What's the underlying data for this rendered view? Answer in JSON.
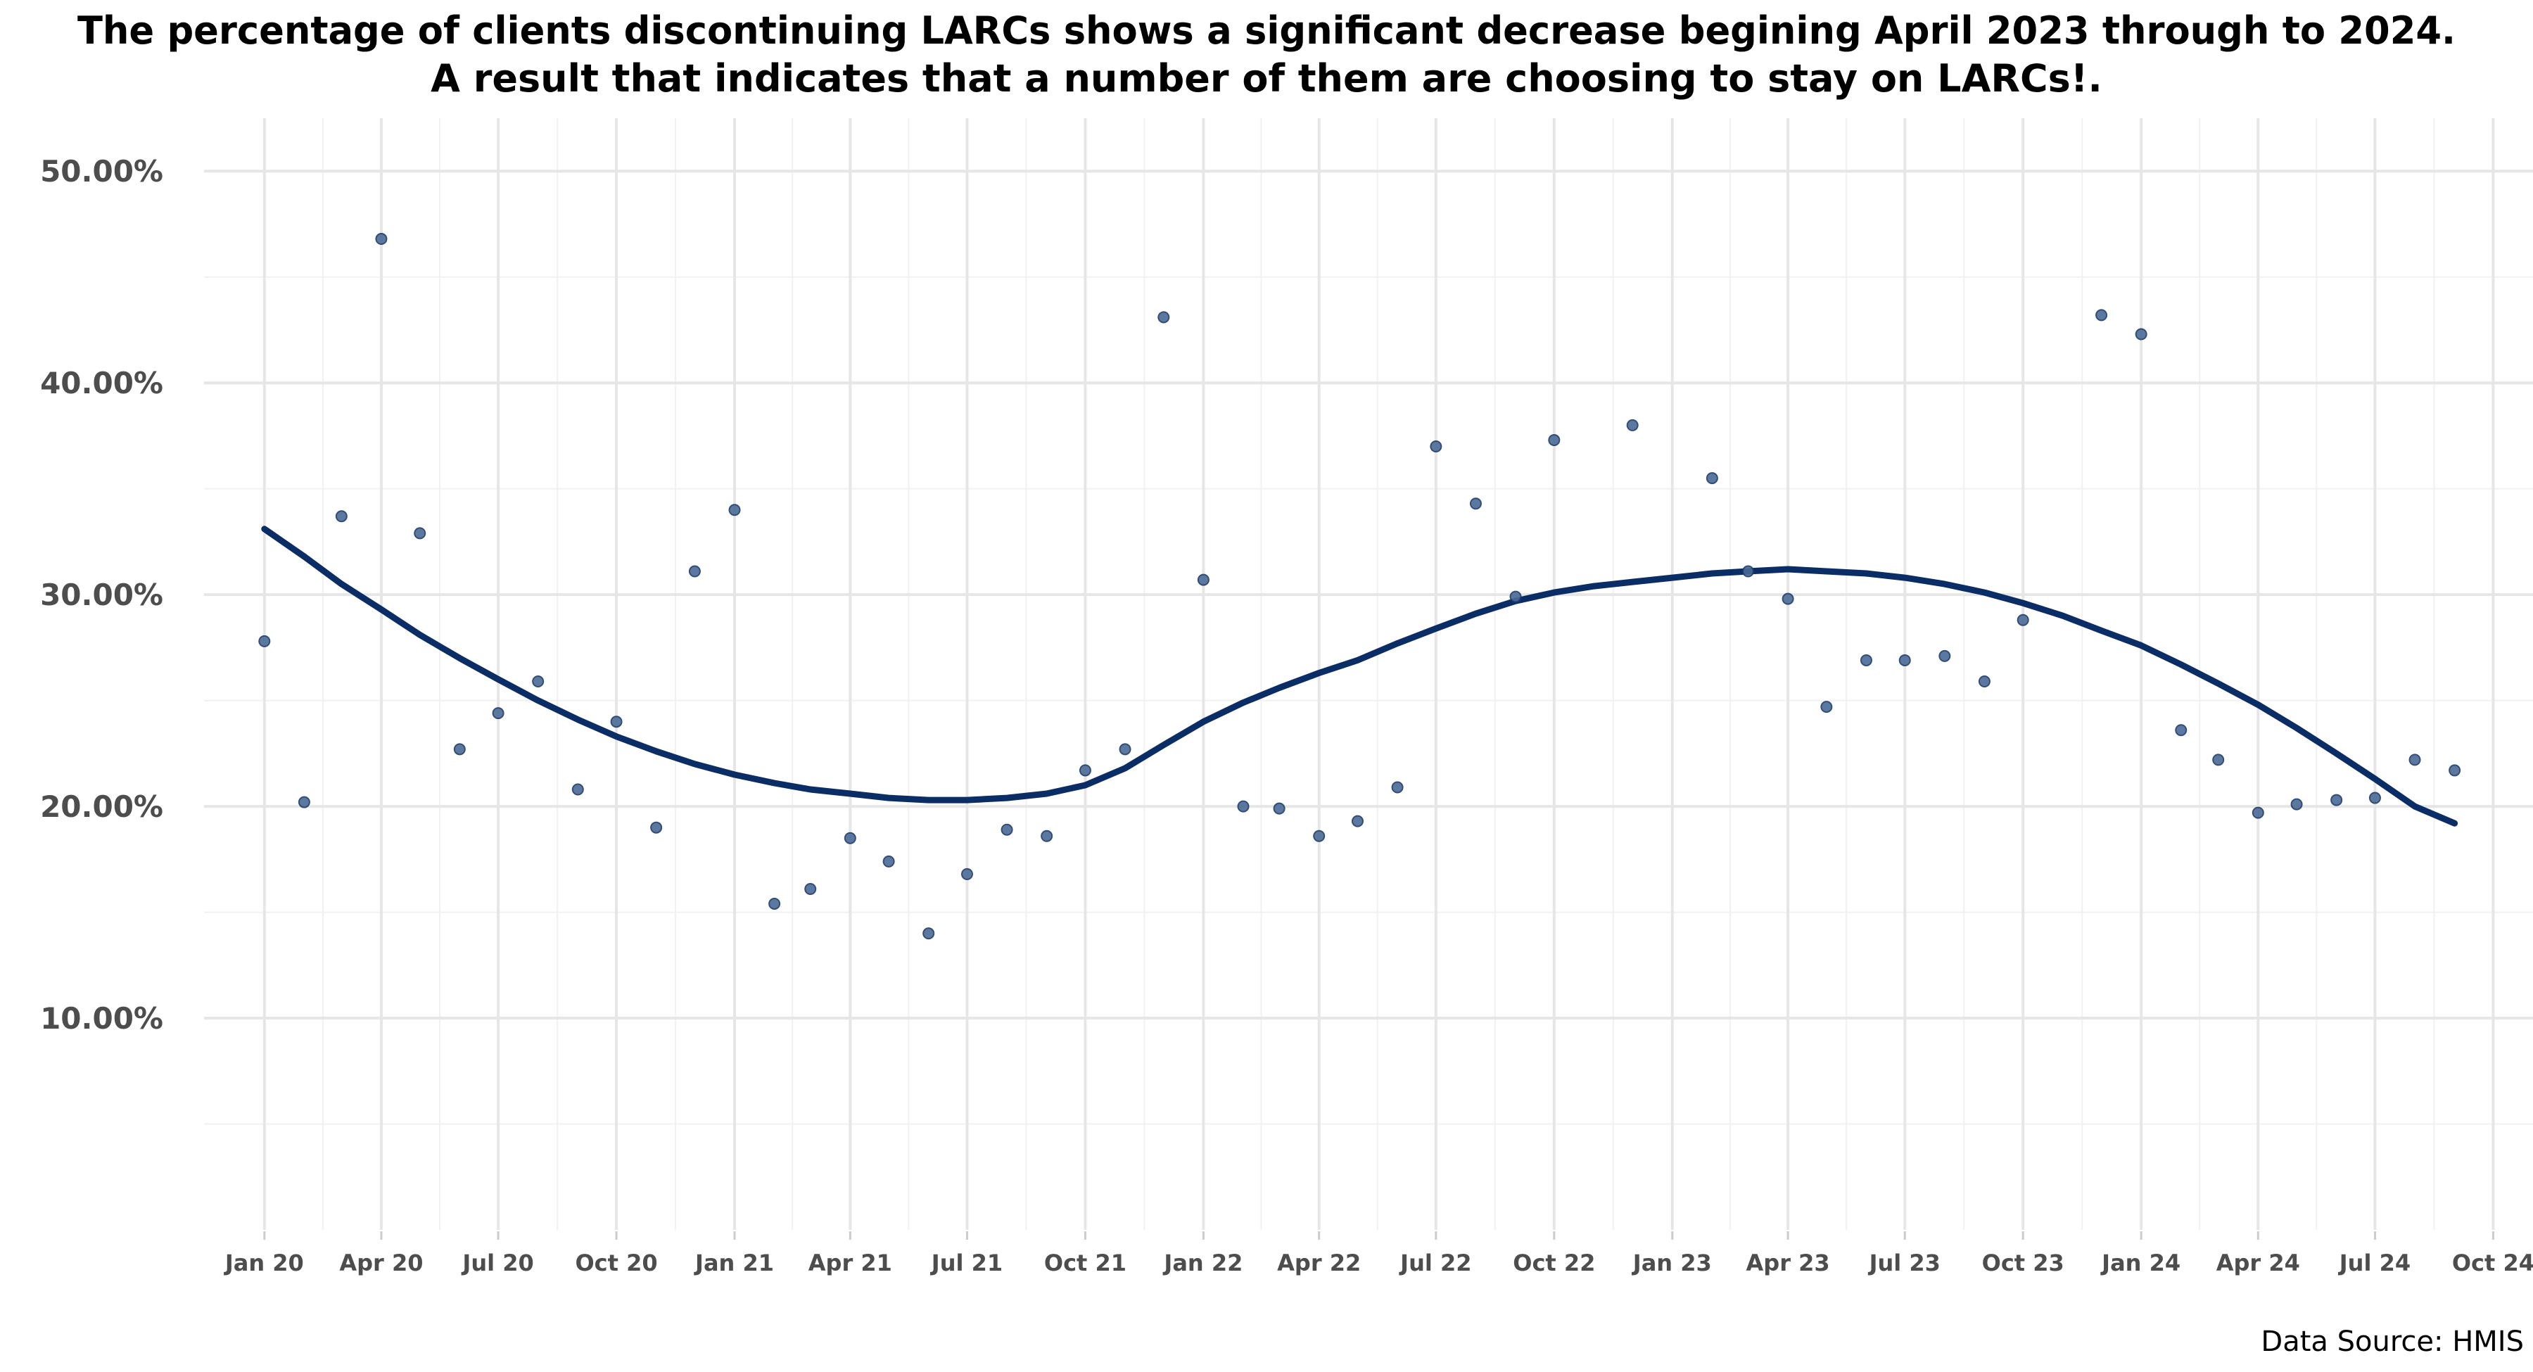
{
  "chart_data": {
    "type": "scatter",
    "title_lines": [
      "The percentage of clients discontinuing LARCs shows a significant decrease begining April 2023 through to 2024.",
      "A result that indicates that a number of them are choosing to stay on LARCs!."
    ],
    "caption": "Data Source: HMIS",
    "xlabel": "",
    "ylabel": "",
    "x_range": [
      "2019-11-15",
      "2024-11-01"
    ],
    "y_range": [
      0,
      0.525
    ],
    "x_ticks": [
      {
        "date": "2020-01-01",
        "label": "Jan 20"
      },
      {
        "date": "2020-04-01",
        "label": "Apr 20"
      },
      {
        "date": "2020-07-01",
        "label": "Jul 20"
      },
      {
        "date": "2020-10-01",
        "label": "Oct 20"
      },
      {
        "date": "2021-01-01",
        "label": "Jan 21"
      },
      {
        "date": "2021-04-01",
        "label": "Apr 21"
      },
      {
        "date": "2021-07-01",
        "label": "Jul 21"
      },
      {
        "date": "2021-10-01",
        "label": "Oct 21"
      },
      {
        "date": "2022-01-01",
        "label": "Jan 22"
      },
      {
        "date": "2022-04-01",
        "label": "Apr 22"
      },
      {
        "date": "2022-07-01",
        "label": "Jul 22"
      },
      {
        "date": "2022-10-01",
        "label": "Oct 22"
      },
      {
        "date": "2023-01-01",
        "label": "Jan 23"
      },
      {
        "date": "2023-04-01",
        "label": "Apr 23"
      },
      {
        "date": "2023-07-01",
        "label": "Jul 23"
      },
      {
        "date": "2023-10-01",
        "label": "Oct 23"
      },
      {
        "date": "2024-01-01",
        "label": "Jan 24"
      },
      {
        "date": "2024-04-01",
        "label": "Apr 24"
      },
      {
        "date": "2024-07-01",
        "label": "Jul 24"
      },
      {
        "date": "2024-10-01",
        "label": "Oct 24"
      }
    ],
    "y_ticks": [
      {
        "value": 0.1,
        "label": "10.00%"
      },
      {
        "value": 0.2,
        "label": "20.00%"
      },
      {
        "value": 0.3,
        "label": "30.00%"
      },
      {
        "value": 0.4,
        "label": "40.00%"
      },
      {
        "value": 0.5,
        "label": "50.00%"
      }
    ],
    "grid": true,
    "legend": "none",
    "colors": {
      "points": "#4a6a96",
      "points_edge": "#1f3a66",
      "trend": "#0b2d66"
    },
    "points": [
      {
        "x": "2020-01-01",
        "y": 0.278
      },
      {
        "x": "2020-02-01",
        "y": 0.202
      },
      {
        "x": "2020-03-01",
        "y": 0.337
      },
      {
        "x": "2020-04-01",
        "y": 0.468
      },
      {
        "x": "2020-05-01",
        "y": 0.329
      },
      {
        "x": "2020-06-01",
        "y": 0.227
      },
      {
        "x": "2020-07-01",
        "y": 0.244
      },
      {
        "x": "2020-08-01",
        "y": 0.259
      },
      {
        "x": "2020-09-01",
        "y": 0.208
      },
      {
        "x": "2020-10-01",
        "y": 0.24
      },
      {
        "x": "2020-11-01",
        "y": 0.19
      },
      {
        "x": "2020-12-01",
        "y": 0.311
      },
      {
        "x": "2021-01-01",
        "y": 0.34
      },
      {
        "x": "2021-02-01",
        "y": 0.154
      },
      {
        "x": "2021-03-01",
        "y": 0.161
      },
      {
        "x": "2021-04-01",
        "y": 0.185
      },
      {
        "x": "2021-05-01",
        "y": 0.174
      },
      {
        "x": "2021-06-01",
        "y": 0.14
      },
      {
        "x": "2021-07-01",
        "y": 0.168
      },
      {
        "x": "2021-08-01",
        "y": 0.189
      },
      {
        "x": "2021-09-01",
        "y": 0.186
      },
      {
        "x": "2021-10-01",
        "y": 0.217
      },
      {
        "x": "2021-11-01",
        "y": 0.227
      },
      {
        "x": "2021-12-01",
        "y": 0.431
      },
      {
        "x": "2022-01-01",
        "y": 0.307
      },
      {
        "x": "2022-02-01",
        "y": 0.2
      },
      {
        "x": "2022-03-01",
        "y": 0.199
      },
      {
        "x": "2022-04-01",
        "y": 0.186
      },
      {
        "x": "2022-05-01",
        "y": 0.193
      },
      {
        "x": "2022-06-01",
        "y": 0.209
      },
      {
        "x": "2022-07-01",
        "y": 0.37
      },
      {
        "x": "2022-08-01",
        "y": 0.343
      },
      {
        "x": "2022-09-01",
        "y": 0.299
      },
      {
        "x": "2022-10-01",
        "y": 0.373
      },
      {
        "x": "2022-12-01",
        "y": 0.38
      },
      {
        "x": "2023-02-01",
        "y": 0.355
      },
      {
        "x": "2023-03-01",
        "y": 0.311
      },
      {
        "x": "2023-04-01",
        "y": 0.298
      },
      {
        "x": "2023-05-01",
        "y": 0.247
      },
      {
        "x": "2023-06-01",
        "y": 0.269
      },
      {
        "x": "2023-07-01",
        "y": 0.269
      },
      {
        "x": "2023-08-01",
        "y": 0.271
      },
      {
        "x": "2023-09-01",
        "y": 0.259
      },
      {
        "x": "2023-10-01",
        "y": 0.288
      },
      {
        "x": "2023-12-01",
        "y": 0.432
      },
      {
        "x": "2024-01-01",
        "y": 0.423
      },
      {
        "x": "2024-02-01",
        "y": 0.236
      },
      {
        "x": "2024-03-01",
        "y": 0.222
      },
      {
        "x": "2024-04-01",
        "y": 0.197
      },
      {
        "x": "2024-05-01",
        "y": 0.201
      },
      {
        "x": "2024-06-01",
        "y": 0.203
      },
      {
        "x": "2024-07-01",
        "y": 0.204
      },
      {
        "x": "2024-08-01",
        "y": 0.222
      },
      {
        "x": "2024-09-01",
        "y": 0.217
      }
    ],
    "trend_line": [
      {
        "x": "2020-01-01",
        "y": 0.331
      },
      {
        "x": "2020-02-01",
        "y": 0.318
      },
      {
        "x": "2020-03-01",
        "y": 0.305
      },
      {
        "x": "2020-04-01",
        "y": 0.293
      },
      {
        "x": "2020-05-01",
        "y": 0.281
      },
      {
        "x": "2020-06-01",
        "y": 0.27
      },
      {
        "x": "2020-07-01",
        "y": 0.26
      },
      {
        "x": "2020-08-01",
        "y": 0.25
      },
      {
        "x": "2020-09-01",
        "y": 0.241
      },
      {
        "x": "2020-10-01",
        "y": 0.233
      },
      {
        "x": "2020-11-01",
        "y": 0.226
      },
      {
        "x": "2020-12-01",
        "y": 0.22
      },
      {
        "x": "2021-01-01",
        "y": 0.215
      },
      {
        "x": "2021-02-01",
        "y": 0.211
      },
      {
        "x": "2021-03-01",
        "y": 0.208
      },
      {
        "x": "2021-04-01",
        "y": 0.206
      },
      {
        "x": "2021-05-01",
        "y": 0.204
      },
      {
        "x": "2021-06-01",
        "y": 0.203
      },
      {
        "x": "2021-07-01",
        "y": 0.203
      },
      {
        "x": "2021-08-01",
        "y": 0.204
      },
      {
        "x": "2021-09-01",
        "y": 0.206
      },
      {
        "x": "2021-10-01",
        "y": 0.21
      },
      {
        "x": "2021-11-01",
        "y": 0.218
      },
      {
        "x": "2021-12-01",
        "y": 0.229
      },
      {
        "x": "2022-01-01",
        "y": 0.24
      },
      {
        "x": "2022-02-01",
        "y": 0.249
      },
      {
        "x": "2022-03-01",
        "y": 0.256
      },
      {
        "x": "2022-04-01",
        "y": 0.263
      },
      {
        "x": "2022-05-01",
        "y": 0.269
      },
      {
        "x": "2022-06-01",
        "y": 0.277
      },
      {
        "x": "2022-07-01",
        "y": 0.284
      },
      {
        "x": "2022-08-01",
        "y": 0.291
      },
      {
        "x": "2022-09-01",
        "y": 0.297
      },
      {
        "x": "2022-10-01",
        "y": 0.301
      },
      {
        "x": "2022-11-01",
        "y": 0.304
      },
      {
        "x": "2022-12-01",
        "y": 0.306
      },
      {
        "x": "2023-01-01",
        "y": 0.308
      },
      {
        "x": "2023-02-01",
        "y": 0.31
      },
      {
        "x": "2023-03-01",
        "y": 0.311
      },
      {
        "x": "2023-04-01",
        "y": 0.312
      },
      {
        "x": "2023-05-01",
        "y": 0.311
      },
      {
        "x": "2023-06-01",
        "y": 0.31
      },
      {
        "x": "2023-07-01",
        "y": 0.308
      },
      {
        "x": "2023-08-01",
        "y": 0.305
      },
      {
        "x": "2023-09-01",
        "y": 0.301
      },
      {
        "x": "2023-10-01",
        "y": 0.296
      },
      {
        "x": "2023-11-01",
        "y": 0.29
      },
      {
        "x": "2023-12-01",
        "y": 0.283
      },
      {
        "x": "2024-01-01",
        "y": 0.276
      },
      {
        "x": "2024-02-01",
        "y": 0.267
      },
      {
        "x": "2024-03-01",
        "y": 0.258
      },
      {
        "x": "2024-04-01",
        "y": 0.248
      },
      {
        "x": "2024-05-01",
        "y": 0.237
      },
      {
        "x": "2024-06-01",
        "y": 0.225
      },
      {
        "x": "2024-07-01",
        "y": 0.213
      },
      {
        "x": "2024-08-01",
        "y": 0.2
      },
      {
        "x": "2024-09-01",
        "y": 0.192
      }
    ]
  }
}
